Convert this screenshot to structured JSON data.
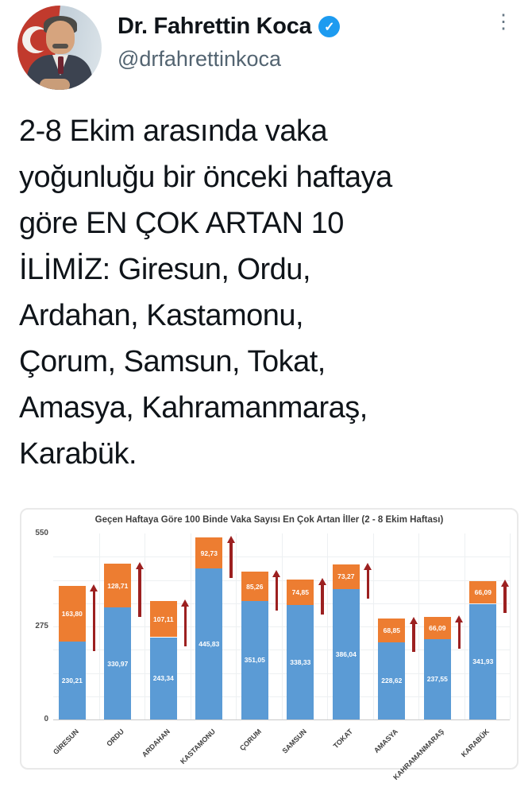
{
  "header": {
    "display_name": "Dr. Fahrettin Koca",
    "handle": "@drfahrettinkoca",
    "verified_icon": "✓",
    "more_menu_icon": "⋮",
    "accent_color": "#1d9bf0"
  },
  "tweet": {
    "lines": [
      "2-8 Ekim arasında vaka",
      "yoğunluğu bir önceki haftaya",
      "göre EN ÇOK ARTAN 10",
      "İLİMİZ: Giresun, Ordu,",
      "Ardahan, Kastamonu,",
      "Çorum, Samsun, Tokat,",
      "Amasya, Kahramanmaraş,",
      "Karabük."
    ]
  },
  "chart_data": {
    "type": "bar",
    "stacked": true,
    "title": "Geçen Haftaya Göre 100 Binde Vaka Sayısı En Çok Artan İller (2 - 8 Ekim Haftası)",
    "categories": [
      "GİRESUN",
      "ORDU",
      "ARDAHAN",
      "KASTAMONU",
      "ÇORUM",
      "SAMSUN",
      "TOKAT",
      "AMASYA",
      "KAHRAMANMARAŞ",
      "KARABÜK"
    ],
    "series": [
      {
        "name": "onceki-hafta-100-binde-vaka",
        "color": "#5b9bd5",
        "values": [
          230.21,
          330.97,
          243.34,
          445.83,
          351.05,
          338.33,
          386.04,
          228.62,
          237.55,
          341.93
        ],
        "labels": [
          "230,21",
          "330,97",
          "243,34",
          "445,83",
          "351,05",
          "338,33",
          "386,04",
          "228,62",
          "237,55",
          "341,93"
        ]
      },
      {
        "name": "artis",
        "color": "#ed7d31",
        "values": [
          163.8,
          128.71,
          107.11,
          92.73,
          85.26,
          74.85,
          73.27,
          68.85,
          66.09,
          66.09
        ],
        "labels": [
          "163,80",
          "128,71",
          "107,11",
          "92,73",
          "85,26",
          "74,85",
          "73,27",
          "68,85",
          "66,09",
          "66,09"
        ]
      }
    ],
    "ylim": [
      0,
      550
    ],
    "yticks": [
      550,
      275,
      0
    ],
    "grid": true,
    "legend": "none",
    "annotation": "dark-red-up-arrow-beside-each-increase-segment",
    "arrow_color": "#9c2020",
    "label_text_color": "#ffffff"
  }
}
